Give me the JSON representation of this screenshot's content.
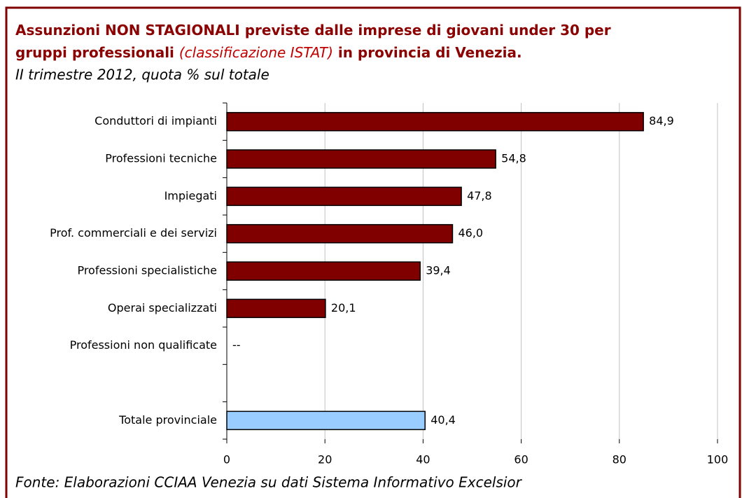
{
  "chart_data": {
    "type": "barh",
    "title_parts": [
      "Assunzioni NON STAGIONALI previste dalle imprese di giovani under 30 per",
      "gruppi professionali",
      "(classificazione ISTAT)",
      "in provincia di Venezia."
    ],
    "subtitle": "II trimestre 2012, quota % sul totale",
    "source": "Fonte: Elaborazioni CCIAA Venezia su dati Sistema Informativo Excelsior",
    "categories": [
      "Conduttori di impianti",
      "Professioni tecniche",
      "Impiegati",
      "Prof. commerciali e dei servizi",
      "Professioni specialistiche",
      "Operai specializzati",
      "Professioni non qualificate",
      null,
      "Totale provinciale"
    ],
    "values": [
      84.9,
      54.8,
      47.8,
      46.0,
      39.4,
      20.1,
      null,
      null,
      40.4
    ],
    "value_labels": [
      "84,9",
      "54,8",
      "47,8",
      "46,0",
      "39,4",
      "20,1",
      "--",
      null,
      "40,4"
    ],
    "colors": [
      "#800000",
      "#800000",
      "#800000",
      "#800000",
      "#800000",
      "#800000",
      "#800000",
      "#800000",
      "#99ccff"
    ],
    "xlim": [
      0,
      100
    ],
    "xticks": [
      0,
      20,
      40,
      60,
      80,
      100
    ],
    "grid": true
  }
}
